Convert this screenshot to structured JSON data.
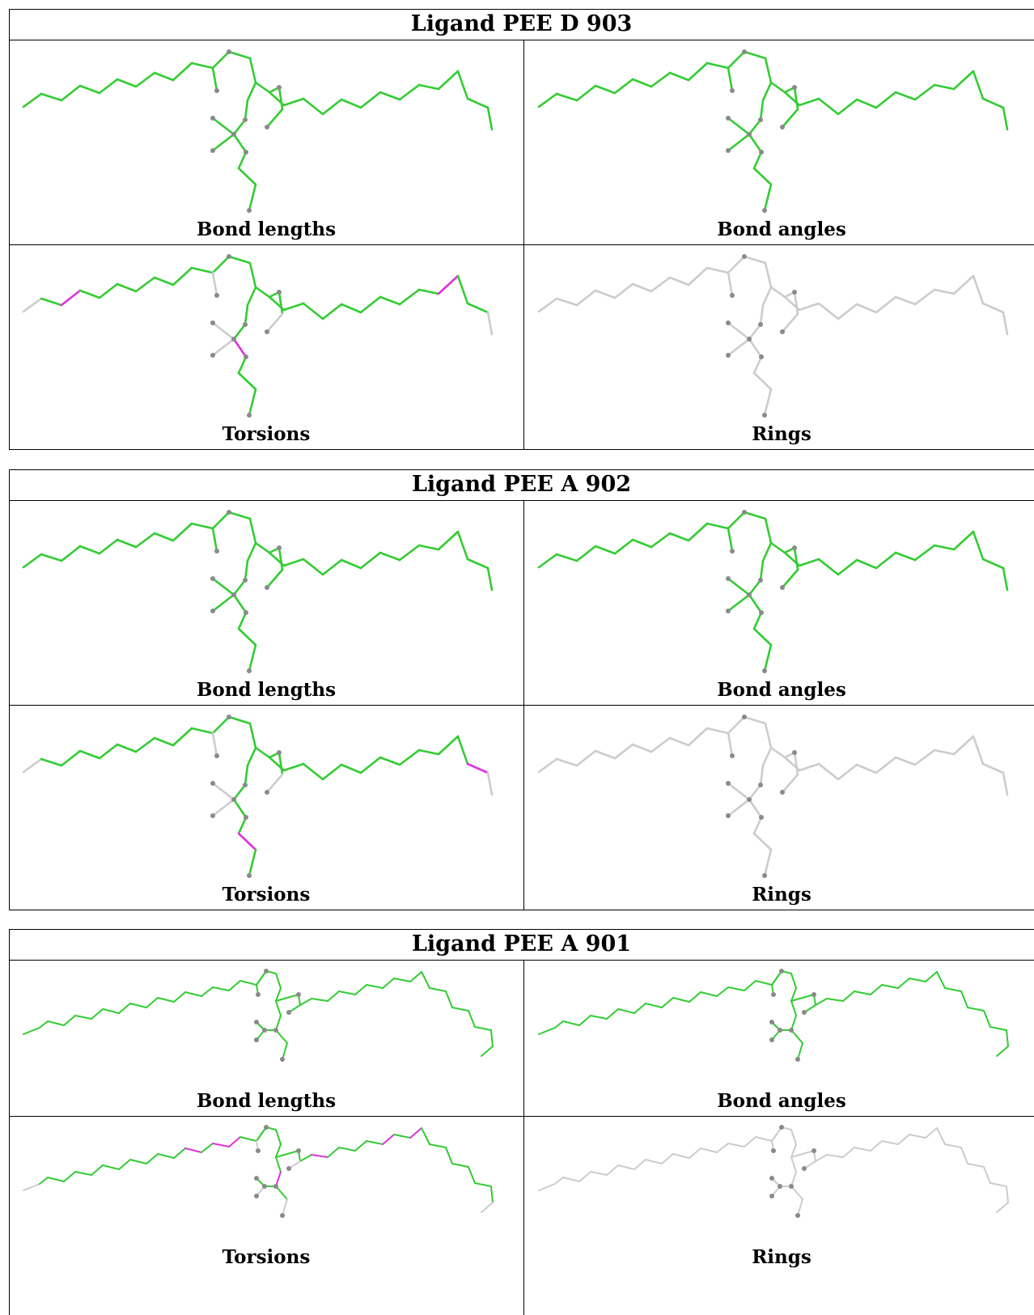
{
  "blocks": [
    {
      "title": "Ligand PEE D 903",
      "panels": [
        "Bond lengths",
        "Bond angles",
        "Torsions",
        "Rings"
      ]
    },
    {
      "title": "Ligand PEE A 902",
      "panels": [
        "Bond lengths",
        "Bond angles",
        "Torsions",
        "Rings"
      ]
    },
    {
      "title": "Ligand PEE A 901",
      "panels": [
        "Bond lengths",
        "Bond angles",
        "Torsions",
        "Rings"
      ]
    }
  ],
  "colors": {
    "bond_ok": "#33cc33",
    "bond_outlier": "#dd33dd",
    "bond_neutral": "#cccccc",
    "atom": "#8a8a8a",
    "frame": "#000000"
  }
}
